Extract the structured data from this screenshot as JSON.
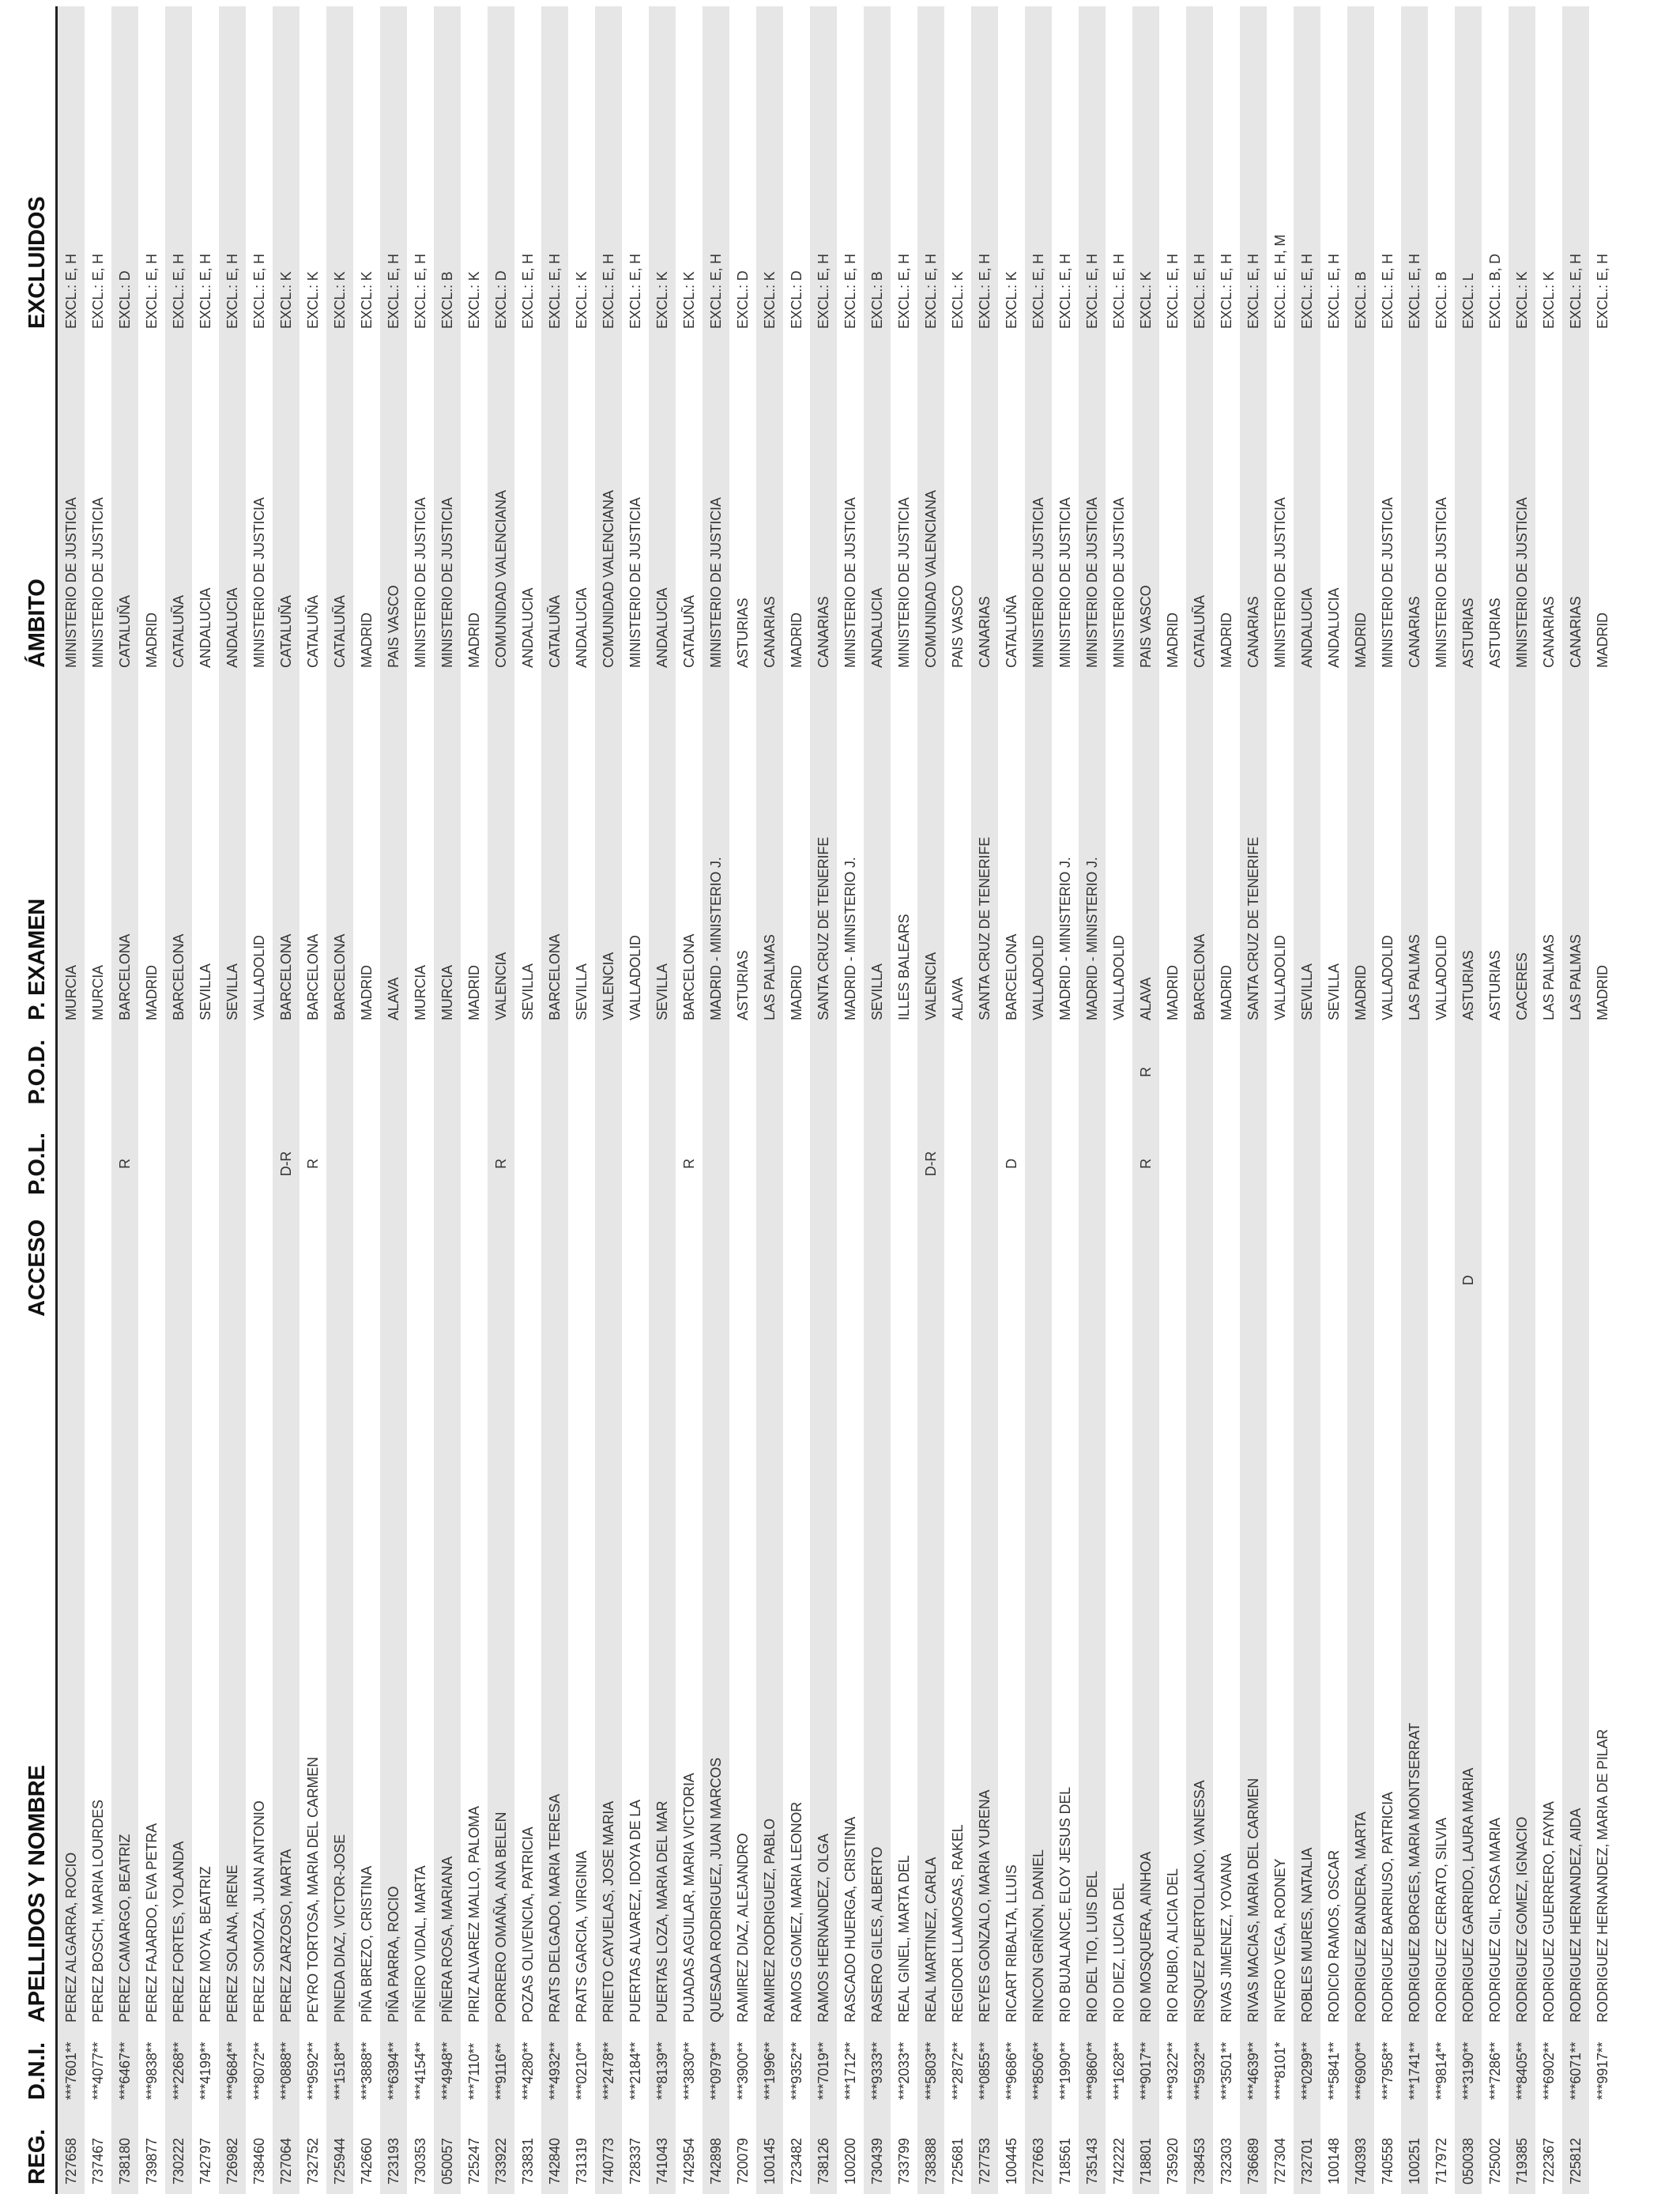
{
  "table": {
    "headers": [
      "REG.",
      "D.N.I.",
      "APELLIDOS Y NOMBRE",
      "ACCESO",
      "P.O.L.",
      "P.O.D.",
      "P. EXAMEN",
      "ÁMBITO",
      "EXCLUIDOS"
    ],
    "rows": [
      [
        "727658",
        "***7601**",
        "PEREZ ALGARRA, ROCIO",
        null,
        null,
        null,
        "MURCIA",
        "MINISTERIO DE JUSTICIA",
        "EXCL.: E, H"
      ],
      [
        "737467",
        "***4077**",
        "PEREZ BOSCH, MARIA LOURDES",
        null,
        null,
        null,
        "MURCIA",
        "MINISTERIO DE JUSTICIA",
        "EXCL.: E, H"
      ],
      [
        "738180",
        "***6467**",
        "PEREZ CAMARGO, BEATRIZ",
        null,
        "R",
        null,
        "BARCELONA",
        "CATALUÑA",
        "EXCL.: D"
      ],
      [
        "739877",
        "***9838**",
        "PEREZ FAJARDO, EVA PETRA",
        null,
        null,
        null,
        "MADRID",
        "MADRID",
        "EXCL.: E, H"
      ],
      [
        "730222",
        "***2268**",
        "PEREZ FORTES, YOLANDA",
        null,
        null,
        null,
        "BARCELONA",
        "CATALUÑA",
        "EXCL.: E, H"
      ],
      [
        "742797",
        "***4199**",
        "PEREZ MOYA, BEATRIZ",
        null,
        null,
        null,
        "SEVILLA",
        "ANDALUCIA",
        "EXCL.: E, H"
      ],
      [
        "726982",
        "***9684**",
        "PEREZ SOLANA, IRENE",
        null,
        null,
        null,
        "SEVILLA",
        "ANDALUCIA",
        "EXCL.: E, H"
      ],
      [
        "738460",
        "***8072**",
        "PEREZ SOMOZA, JUAN ANTONIO",
        null,
        null,
        null,
        "VALLADOLID",
        "MINISTERIO DE JUSTICIA",
        "EXCL.: E, H"
      ],
      [
        "727064",
        "***0888**",
        "PEREZ ZARZOSO, MARTA",
        null,
        "D-R",
        null,
        "BARCELONA",
        "CATALUÑA",
        "EXCL.: K"
      ],
      [
        "732752",
        "***9592**",
        "PEYRO TORTOSA, MARIA DEL CARMEN",
        null,
        "R",
        null,
        "BARCELONA",
        "CATALUÑA",
        "EXCL.: K"
      ],
      [
        "725944",
        "***1518**",
        "PINEDA DIAZ, VICTOR-JOSE",
        null,
        null,
        null,
        "BARCELONA",
        "CATALUÑA",
        "EXCL.: K"
      ],
      [
        "742660",
        "***3888**",
        "PIÑA BREZO, CRISTINA",
        null,
        null,
        null,
        "MADRID",
        "MADRID",
        "EXCL.: K"
      ],
      [
        "723193",
        "***6394**",
        "PIÑA PARRA, ROCIO",
        null,
        null,
        null,
        "ALAVA",
        "PAIS VASCO",
        "EXCL.: E, H"
      ],
      [
        "730353",
        "***4154**",
        "PIÑEIRO VIDAL, MARTA",
        null,
        null,
        null,
        "MURCIA",
        "MINISTERIO DE JUSTICIA",
        "EXCL.: E, H"
      ],
      [
        "050057",
        "***4948**",
        "PIÑERA  ROSA, MARIANA",
        null,
        null,
        null,
        "MURCIA",
        "MINISTERIO DE JUSTICIA",
        "EXCL.: B"
      ],
      [
        "725247",
        "***7110**",
        "PIRIZ ALVAREZ MALLO, PALOMA",
        null,
        null,
        null,
        "MADRID",
        "MADRID",
        "EXCL.: K"
      ],
      [
        "733922",
        "***9116**",
        "PORRERO OMAÑA, ANA BELEN",
        null,
        "R",
        null,
        "VALENCIA",
        "COMUNIDAD VALENCIANA",
        "EXCL.: D"
      ],
      [
        "733831",
        "***4280**",
        "POZAS OLIVENCIA, PATRICIA",
        null,
        null,
        null,
        "SEVILLA",
        "ANDALUCIA",
        "EXCL.: E, H"
      ],
      [
        "742840",
        "***4932**",
        "PRATS DELGADO, MARIA TERESA",
        null,
        null,
        null,
        "BARCELONA",
        "CATALUÑA",
        "EXCL.: E, H"
      ],
      [
        "731319",
        "***0210**",
        "PRATS GARCIA, VIRGINIA",
        null,
        null,
        null,
        "SEVILLA",
        "ANDALUCIA",
        "EXCL.: K"
      ],
      [
        "740773",
        "***2478**",
        "PRIETO CAYUELAS, JOSE MARIA",
        null,
        null,
        null,
        "VALENCIA",
        "COMUNIDAD VALENCIANA",
        "EXCL.: E, H"
      ],
      [
        "728337",
        "***2184**",
        "PUERTAS ALVAREZ, IDOYA DE LA",
        null,
        null,
        null,
        "VALLADOLID",
        "MINISTERIO DE JUSTICIA",
        "EXCL.: E, H"
      ],
      [
        "741043",
        "***8139**",
        "PUERTAS LOZA, MARIA DEL MAR",
        null,
        null,
        null,
        "SEVILLA",
        "ANDALUCIA",
        "EXCL.: K"
      ],
      [
        "742954",
        "***3830**",
        "PUJADAS AGUILAR, MARIA VICTORIA",
        null,
        "R",
        null,
        "BARCELONA",
        "CATALUÑA",
        "EXCL.: K"
      ],
      [
        "742898",
        "***0979**",
        "QUESADA RODRIGUEZ, JUAN MARCOS",
        null,
        null,
        null,
        "MADRID - MINISTERIO J.",
        "MINISTERIO DE JUSTICIA",
        "EXCL.: E, H"
      ],
      [
        "720079",
        "***3900**",
        "RAMIREZ DIAZ, ALEJANDRO",
        null,
        null,
        null,
        "ASTURIAS",
        "ASTURIAS",
        "EXCL.: D"
      ],
      [
        "100145",
        "***1996**",
        "RAMIREZ RODRIGUEZ, PABLO",
        null,
        null,
        null,
        "LAS PALMAS",
        "CANARIAS",
        "EXCL.: K"
      ],
      [
        "723482",
        "***9352**",
        "RAMOS GOMEZ, MARIA LEONOR",
        null,
        null,
        null,
        "MADRID",
        "MADRID",
        "EXCL.: D"
      ],
      [
        "738126",
        "***7019**",
        "RAMOS HERNANDEZ, OLGA",
        null,
        null,
        null,
        "SANTA CRUZ DE TENERIFE",
        "CANARIAS",
        "EXCL.: E, H"
      ],
      [
        "100200",
        "***1712**",
        "RASCADO HUERGA, CRISTINA",
        null,
        null,
        null,
        "MADRID - MINISTERIO J.",
        "MINISTERIO DE JUSTICIA",
        "EXCL.: E, H"
      ],
      [
        "730439",
        "***9333**",
        "RASERO GILES, ALBERTO",
        null,
        null,
        null,
        "SEVILLA",
        "ANDALUCIA",
        "EXCL.: B"
      ],
      [
        "733799",
        "***2033**",
        "REAL GINEL, MARTA DEL",
        null,
        null,
        null,
        "ILLES BALEARS",
        "MINISTERIO DE JUSTICIA",
        "EXCL.: E, H"
      ],
      [
        "738388",
        "***5803**",
        "REAL MARTINEZ, CARLA",
        null,
        "D-R",
        null,
        "VALENCIA",
        "COMUNIDAD VALENCIANA",
        "EXCL.: E, H"
      ],
      [
        "725681",
        "***2872**",
        "REGIDOR LLAMOSAS, RAKEL",
        null,
        null,
        null,
        "ALAVA",
        "PAIS VASCO",
        "EXCL.: K"
      ],
      [
        "727753",
        "***0855**",
        "REYES GONZALO, MARIA YURENA",
        null,
        null,
        null,
        "SANTA CRUZ DE TENERIFE",
        "CANARIAS",
        "EXCL.: E, H"
      ],
      [
        "100445",
        "***9686**",
        "RICART RIBALTA, LLUIS",
        null,
        "D",
        null,
        "BARCELONA",
        "CATALUÑA",
        "EXCL.: K"
      ],
      [
        "727663",
        "***8506**",
        "RINCON GRIÑON, DANIEL",
        null,
        null,
        null,
        "VALLADOLID",
        "MINISTERIO DE JUSTICIA",
        "EXCL.: E, H"
      ],
      [
        "718561",
        "***1990**",
        "RIO BUJALANCE, ELOY JESUS DEL",
        null,
        null,
        null,
        "MADRID - MINISTERIO J.",
        "MINISTERIO DE JUSTICIA",
        "EXCL.: E, H"
      ],
      [
        "735143",
        "***9860**",
        "RIO DEL TIO, LUIS DEL",
        null,
        null,
        null,
        "MADRID - MINISTERIO J.",
        "MINISTERIO DE JUSTICIA",
        "EXCL.: E, H"
      ],
      [
        "742222",
        "***1628**",
        "RIO DIEZ, LUCIA DEL",
        null,
        null,
        null,
        "VALLADOLID",
        "MINISTERIO DE JUSTICIA",
        "EXCL.: E, H"
      ],
      [
        "718801",
        "***9017**",
        "RIO MOSQUERA, AINHOA",
        null,
        "R",
        "R",
        "ALAVA",
        "PAIS VASCO",
        "EXCL.: K"
      ],
      [
        "735920",
        "***9322**",
        "RIO RUBIO, ALICIA DEL",
        null,
        null,
        null,
        "MADRID",
        "MADRID",
        "EXCL.: E, H"
      ],
      [
        "738453",
        "***5932**",
        "RISQUEZ PUERTOLLANO, VANESSA",
        null,
        null,
        null,
        "BARCELONA",
        "CATALUÑA",
        "EXCL.: E, H"
      ],
      [
        "732303",
        "***3501**",
        "RIVAS JIMENEZ, YOVANA",
        null,
        null,
        null,
        "MADRID",
        "MADRID",
        "EXCL.: E, H"
      ],
      [
        "736689",
        "***4639**",
        "RIVAS MACIAS, MARIA DEL CARMEN",
        null,
        null,
        null,
        "SANTA CRUZ DE TENERIFE",
        "CANARIAS",
        "EXCL.: E, H"
      ],
      [
        "727304",
        "****8101*",
        "RIVERO VEGA, RODNEY",
        null,
        null,
        null,
        "VALLADOLID",
        "MINISTERIO DE JUSTICIA",
        "EXCL.: E, H, M"
      ],
      [
        "732701",
        "***0299**",
        "ROBLES MURES, NATALIA",
        null,
        null,
        null,
        "SEVILLA",
        "ANDALUCIA",
        "EXCL.: E, H"
      ],
      [
        "100148",
        "***5841**",
        "RODICIO RAMOS, OSCAR",
        null,
        null,
        null,
        "SEVILLA",
        "ANDALUCIA",
        "EXCL.: E, H"
      ],
      [
        "740393",
        "***6900**",
        "RODRIGUEZ BANDERA, MARTA",
        null,
        null,
        null,
        "MADRID",
        "MADRID",
        "EXCL.: B"
      ],
      [
        "740558",
        "***7958**",
        "RODRIGUEZ BARRIUSO, PATRICIA",
        null,
        null,
        null,
        "VALLADOLID",
        "MINISTERIO DE JUSTICIA",
        "EXCL.: E, H"
      ],
      [
        "100251",
        "***1741**",
        "RODRIGUEZ BORGES, MARIA MONTSERRAT",
        null,
        null,
        null,
        "LAS PALMAS",
        "CANARIAS",
        "EXCL.: E, H"
      ],
      [
        "717972",
        "***9814**",
        "RODRIGUEZ CERRATO, SILVIA",
        null,
        null,
        null,
        "VALLADOLID",
        "MINISTERIO DE JUSTICIA",
        "EXCL.: B"
      ],
      [
        "050038",
        "***3190**",
        "RODRIGUEZ GARRIDO, LAURA MARIA",
        "D",
        null,
        null,
        "ASTURIAS",
        "ASTURIAS",
        "EXCL.: L"
      ],
      [
        "725002",
        "***7286**",
        "RODRIGUEZ GIL, ROSA MARIA",
        null,
        null,
        null,
        "ASTURIAS",
        "ASTURIAS",
        "EXCL.: B, D"
      ],
      [
        "719385",
        "***8405**",
        "RODRIGUEZ GOMEZ, IGNACIO",
        null,
        null,
        null,
        "CACERES",
        "MINISTERIO DE JUSTICIA",
        "EXCL.: K"
      ],
      [
        "722367",
        "***6902**",
        "RODRIGUEZ GUERRERO, FAYNA",
        null,
        null,
        null,
        "LAS PALMAS",
        "CANARIAS",
        "EXCL.: K"
      ],
      [
        "725812",
        "***6071**",
        "RODRIGUEZ HERNANDEZ, AIDA",
        null,
        null,
        null,
        "LAS PALMAS",
        "CANARIAS",
        "EXCL.: E, H"
      ],
      [
        null,
        "***9917**",
        "RODRIGUEZ HERNANDEZ, MARIA DE PILAR",
        null,
        null,
        null,
        "MADRID",
        "MADRID",
        "EXCL.: E, H"
      ]
    ]
  }
}
